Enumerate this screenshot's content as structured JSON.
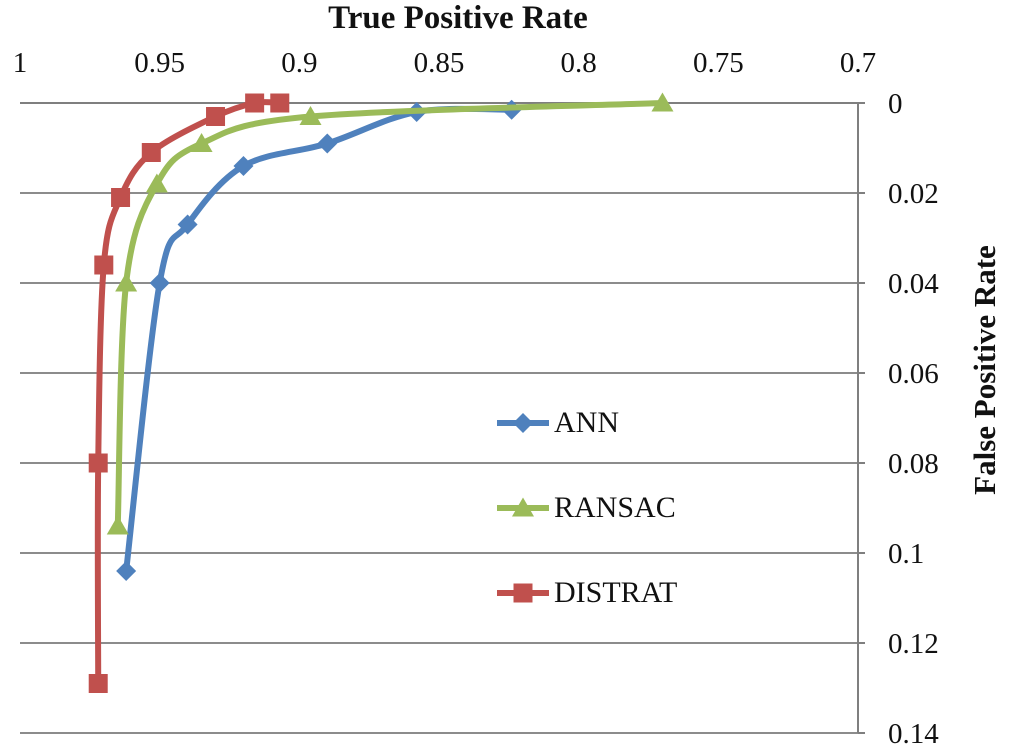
{
  "chart_data": {
    "type": "line",
    "title": "True Positive Rate",
    "xlabel": "True Positive Rate",
    "ylabel": "False Positive Rate",
    "x_axis": {
      "position": "top",
      "reversed": true,
      "min": 0.7,
      "max": 1,
      "tick_labels": [
        "1",
        "0.95",
        "0.9",
        "0.85",
        "0.8",
        "0.75",
        "0.7"
      ],
      "tick_values": [
        1,
        0.95,
        0.9,
        0.85,
        0.8,
        0.75,
        0.7
      ]
    },
    "y_axis": {
      "position": "right",
      "direction": "down",
      "min": 0,
      "max": 0.14,
      "tick_labels": [
        "0",
        "0.02",
        "0.04",
        "0.06",
        "0.08",
        "0.1",
        "0.12",
        "0.14"
      ],
      "tick_values": [
        0,
        0.02,
        0.04,
        0.06,
        0.08,
        0.1,
        0.12,
        0.14
      ]
    },
    "grid": "horizontal",
    "grid_color": "#8C8C8C",
    "axis_color": "#7F7F7F",
    "text_color": "#111111",
    "legend": {
      "overlay": true,
      "entries": [
        "ANN",
        "RANSAC",
        "DISTRAT"
      ]
    },
    "series": [
      {
        "name": "ANN",
        "color": "#4F81BD",
        "marker": "diamond",
        "points_tpr_fpr": [
          [
            0.962,
            0.104
          ],
          [
            0.95,
            0.04
          ],
          [
            0.94,
            0.027
          ],
          [
            0.92,
            0.014
          ],
          [
            0.89,
            0.009
          ],
          [
            0.858,
            0.002
          ],
          [
            0.824,
            0.0015
          ]
        ]
      },
      {
        "name": "RANSAC",
        "color": "#9BBB59",
        "marker": "triangle",
        "points_tpr_fpr": [
          [
            0.965,
            0.094
          ],
          [
            0.962,
            0.04
          ],
          [
            0.951,
            0.018
          ],
          [
            0.935,
            0.009
          ],
          [
            0.896,
            0.003
          ],
          [
            0.77,
            0
          ]
        ]
      },
      {
        "name": "DISTRAT",
        "color": "#C0504D",
        "marker": "square",
        "points_tpr_fpr": [
          [
            0.972,
            0.129
          ],
          [
            0.972,
            0.08
          ],
          [
            0.97,
            0.036
          ],
          [
            0.964,
            0.021
          ],
          [
            0.953,
            0.011
          ],
          [
            0.93,
            0.003
          ],
          [
            0.916,
            0
          ],
          [
            0.907,
            0
          ]
        ]
      }
    ]
  }
}
